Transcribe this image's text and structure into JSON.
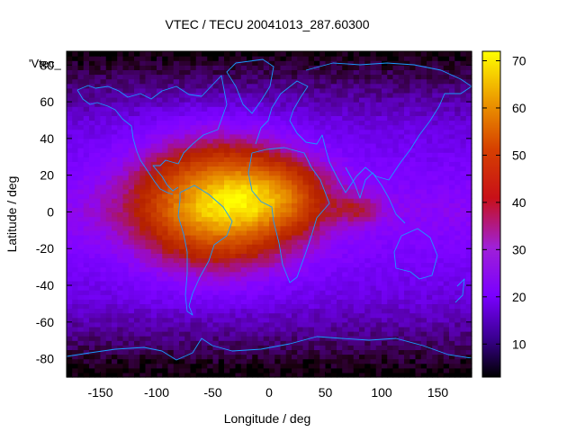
{
  "chart_data": {
    "type": "heatmap",
    "title": "VTEC / TECU 20041013_287.60300",
    "xlabel": "Longitude / deg",
    "ylabel": "Latitude / deg",
    "legend_label": "'Vtec_",
    "xlim": [
      -180,
      180
    ],
    "ylim": [
      -90,
      87.5
    ],
    "xticks": [
      -150,
      -100,
      -50,
      0,
      50,
      100,
      150
    ],
    "yticks": [
      -80,
      -60,
      -40,
      -20,
      0,
      20,
      40,
      60,
      80
    ],
    "colorbar": {
      "range": [
        3,
        72
      ],
      "ticks": [
        10,
        20,
        30,
        40,
        50,
        60,
        70
      ],
      "palette": "gnuplot rgbformulae 7,5,15 (black-purple-red-orange-yellow)"
    },
    "grid_resolution": {
      "dlon": 5,
      "dlat": 2.5
    },
    "ionization_peak": {
      "lon": -45,
      "lat": 5,
      "value": 65
    },
    "overlay": "coastlines",
    "colors": {
      "coastline": "#1a9bff",
      "axes": "#000000"
    }
  }
}
